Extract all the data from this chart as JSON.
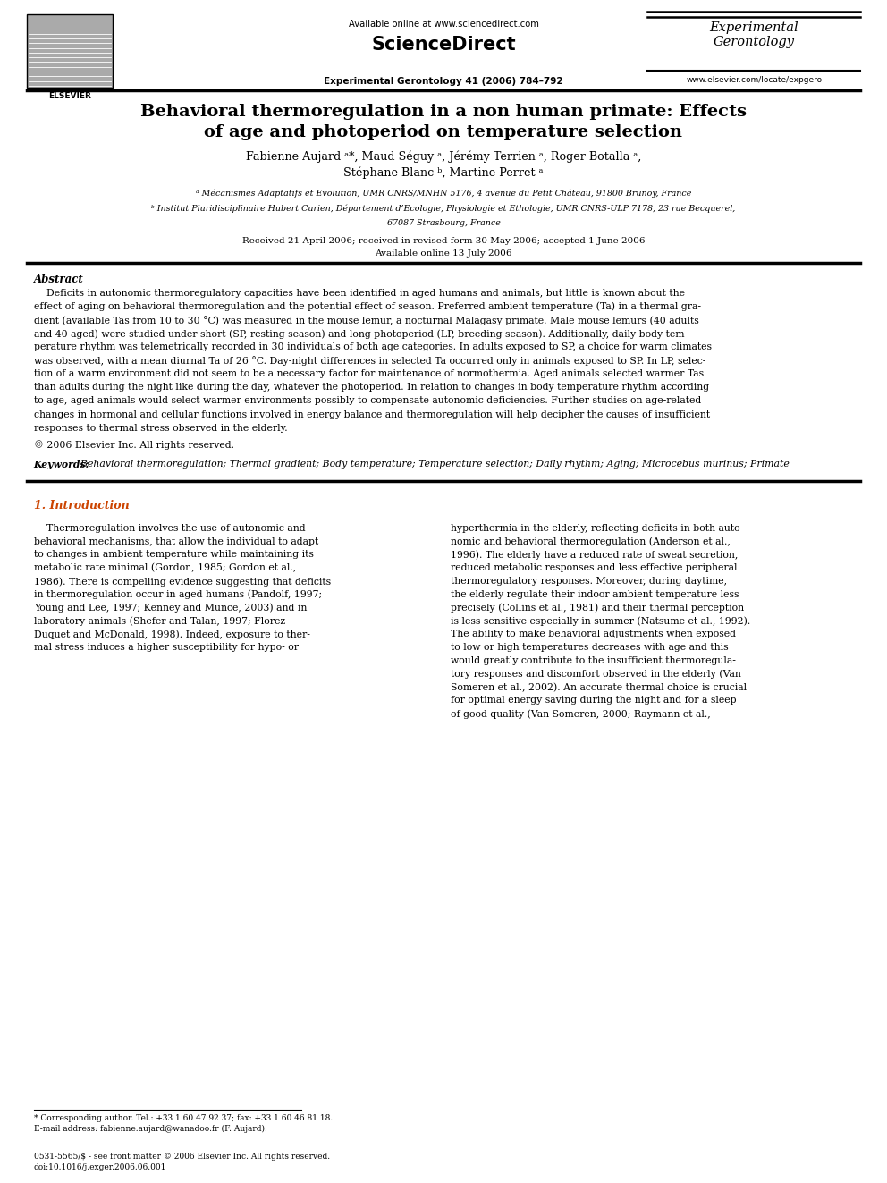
{
  "bg_color": "#ffffff",
  "title_line1": "Behavioral thermoregulation in a non human primate: Effects",
  "title_line2": "of age and photoperiod on temperature selection",
  "authors": "Fabienne Aujard ᵃ*, Maud Séguy ᵃ, Jérémy Terrien ᵃ, Roger Botalla ᵃ,",
  "authors2": "Stéphane Blanc ᵇ, Martine Perret ᵃ",
  "affil_a": "ᵃ Mécanismes Adaptatifs et Evolution, UMR CNRS/MNHN 5176, 4 avenue du Petit Château, 91800 Brunoy, France",
  "affil_b": "ᵇ Institut Pluridisciplinaire Hubert Curien, Département d’Ecologie, Physiologie et Ethologie, UMR CNRS-ULP 7178, 23 rue Becquerel,",
  "affil_b2": "67087 Strasbourg, France",
  "dates": "Received 21 April 2006; received in revised form 30 May 2006; accepted 1 June 2006",
  "dates2": "Available online 13 July 2006",
  "header_url": "Available online at www.sciencedirect.com",
  "journal_name": "ScienceDirect",
  "journal_title": "Experimental\nGerontology",
  "journal_ref": "Experimental Gerontology 41 (2006) 784–792",
  "journal_url": "www.elsevier.com/locate/expgero",
  "abstract_title": "Abstract",
  "copyright": "© 2006 Elsevier Inc. All rights reserved.",
  "keywords_label": "Keywords:",
  "keywords_text": "  Behavioral thermoregulation; Thermal gradient; Body temperature; Temperature selection; Daily rhythm; Aging; Microcebus murinus; Primate",
  "section1_title": "1. Introduction",
  "footnote_star": "* Corresponding author. Tel.: +33 1 60 47 92 37; fax: +33 1 60 46 81 18.",
  "footnote_email": "E-mail address: fabienne.aujard@wanadoo.fr (F. Aujard).",
  "footer_issn": "0531-5565/$ - see front matter © 2006 Elsevier Inc. All rights reserved.",
  "footer_doi": "doi:10.1016/j.exger.2006.06.001",
  "abstract_lines": [
    "    Deficits in autonomic thermoregulatory capacities have been identified in aged humans and animals, but little is known about the",
    "effect of aging on behavioral thermoregulation and the potential effect of season. Preferred ambient temperature (Ta) in a thermal gra-",
    "dient (available Tas from 10 to 30 °C) was measured in the mouse lemur, a nocturnal Malagasy primate. Male mouse lemurs (40 adults",
    "and 40 aged) were studied under short (SP, resting season) and long photoperiod (LP, breeding season). Additionally, daily body tem-",
    "perature rhythm was telemetrically recorded in 30 individuals of both age categories. In adults exposed to SP, a choice for warm climates",
    "was observed, with a mean diurnal Ta of 26 °C. Day-night differences in selected Ta occurred only in animals exposed to SP. In LP, selec-",
    "tion of a warm environment did not seem to be a necessary factor for maintenance of normothermia. Aged animals selected warmer Tas",
    "than adults during the night like during the day, whatever the photoperiod. In relation to changes in body temperature rhythm according",
    "to age, aged animals would select warmer environments possibly to compensate autonomic deficiencies. Further studies on age-related",
    "changes in hormonal and cellular functions involved in energy balance and thermoregulation will help decipher the causes of insufficient",
    "responses to thermal stress observed in the elderly."
  ],
  "intro_col1_lines": [
    "    Thermoregulation involves the use of autonomic and",
    "behavioral mechanisms, that allow the individual to adapt",
    "to changes in ambient temperature while maintaining its",
    "metabolic rate minimal (Gordon, 1985; Gordon et al.,",
    "1986). There is compelling evidence suggesting that deficits",
    "in thermoregulation occur in aged humans (Pandolf, 1997;",
    "Young and Lee, 1997; Kenney and Munce, 2003) and in",
    "laboratory animals (Shefer and Talan, 1997; Florez-",
    "Duquet and McDonald, 1998). Indeed, exposure to ther-",
    "mal stress induces a higher susceptibility for hypo- or"
  ],
  "intro_col2_lines": [
    "hyperthermia in the elderly, reflecting deficits in both auto-",
    "nomic and behavioral thermoregulation (Anderson et al.,",
    "1996). The elderly have a reduced rate of sweat secretion,",
    "reduced metabolic responses and less effective peripheral",
    "thermoregulatory responses. Moreover, during daytime,",
    "the elderly regulate their indoor ambient temperature less",
    "precisely (Collins et al., 1981) and their thermal perception",
    "is less sensitive especially in summer (Natsume et al., 1992).",
    "The ability to make behavioral adjustments when exposed",
    "to low or high temperatures decreases with age and this",
    "would greatly contribute to the insufficient thermoregula-",
    "tory responses and discomfort observed in the elderly (Van",
    "Someren et al., 2002). An accurate thermal choice is crucial",
    "for optimal energy saving during the night and for a sleep",
    "of good quality (Van Someren, 2000; Raymann et al.,"
  ]
}
